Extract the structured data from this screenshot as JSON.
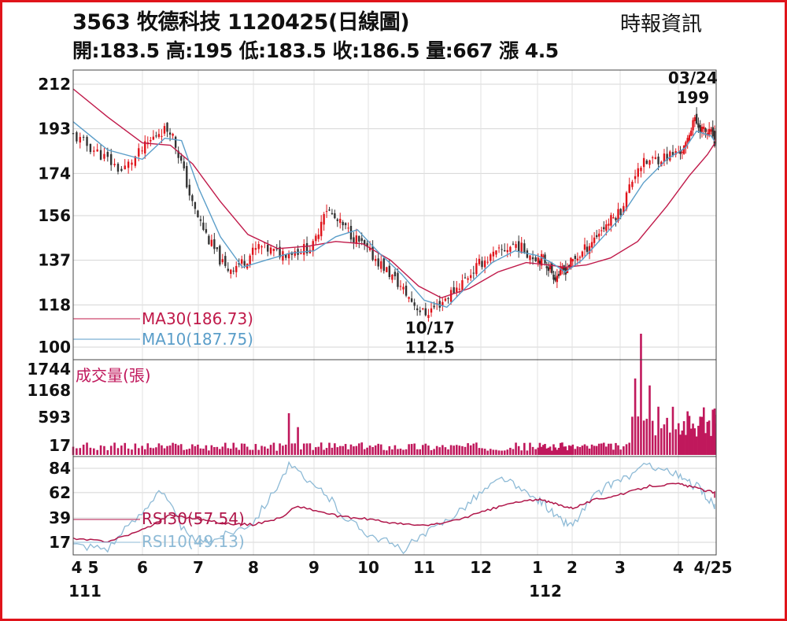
{
  "header": {
    "title": "3563  牧德科技 1120425(日線圖)",
    "source": "時報資訊",
    "ohlc": "開:183.5 高:195 低:183.5 收:186.5 量:667 漲 4.5"
  },
  "colors": {
    "up": "#e0141b",
    "down": "#333333",
    "ma30": "#c01a4a",
    "ma10": "#5b9ec9",
    "volume": "#c0185c",
    "rsi30": "#b0164a",
    "rsi10": "#8dbad6",
    "frame": "#e0141b"
  },
  "chart_data": [
    {
      "type": "candlestick",
      "ylim": [
        100,
        212
      ],
      "yticks": [
        "212",
        "193",
        "174",
        "156",
        "137",
        "118",
        "100"
      ],
      "xticks": [
        "4 5",
        "6",
        "7",
        "8",
        "9",
        "10",
        "11",
        "12",
        "1",
        "2",
        "3",
        "4",
        "4/25"
      ],
      "xticks_year": [
        {
          "label": "111",
          "at": "4 5"
        },
        {
          "label": "112",
          "at": "1"
        }
      ],
      "months": [
        "2022-04",
        "2022-05",
        "2022-06",
        "2022-07",
        "2022-08",
        "2022-09",
        "2022-10",
        "2022-11",
        "2022-12",
        "2023-01",
        "2023-02",
        "2023-03",
        "2023-04"
      ],
      "close_path": [
        [
          0,
          190
        ],
        [
          0.4,
          182
        ],
        [
          0.7,
          175
        ],
        [
          1.0,
          184
        ],
        [
          1.3,
          192
        ],
        [
          1.5,
          193
        ],
        [
          1.7,
          178
        ],
        [
          1.9,
          160
        ],
        [
          2.2,
          145
        ],
        [
          2.5,
          133
        ],
        [
          2.8,
          136
        ],
        [
          3.1,
          143
        ],
        [
          3.4,
          140
        ],
        [
          3.7,
          141
        ],
        [
          4.0,
          143
        ],
        [
          4.2,
          160
        ],
        [
          4.4,
          154
        ],
        [
          4.6,
          150
        ],
        [
          4.9,
          143
        ],
        [
          5.2,
          136
        ],
        [
          5.5,
          128
        ],
        [
          5.8,
          119
        ],
        [
          6.0,
          114
        ],
        [
          6.3,
          119
        ],
        [
          6.6,
          126
        ],
        [
          7.0,
          136
        ],
        [
          7.3,
          140
        ],
        [
          7.6,
          144
        ],
        [
          7.9,
          139
        ],
        [
          8.2,
          137
        ],
        [
          8.5,
          130
        ],
        [
          8.8,
          133
        ],
        [
          9.2,
          140
        ],
        [
          9.6,
          150
        ],
        [
          10.0,
          158
        ],
        [
          10.3,
          177
        ],
        [
          10.6,
          180
        ],
        [
          10.9,
          182
        ],
        [
          11.2,
          185
        ],
        [
          11.4,
          197
        ],
        [
          11.7,
          192
        ],
        [
          12.0,
          190
        ],
        [
          12.2,
          186.5
        ]
      ],
      "annotations": [
        {
          "label": "03/24",
          "value": "199",
          "y": 199,
          "at": 11.4
        },
        {
          "label": "10/17",
          "value": "112.5",
          "y": 112.5,
          "at": 6.1
        }
      ],
      "series": [
        {
          "name": "MA30(186.73)",
          "path": [
            [
              0,
              210
            ],
            [
              0.5,
              198
            ],
            [
              1.0,
              187
            ],
            [
              1.5,
              186
            ],
            [
              1.9,
              178
            ],
            [
              2.4,
              162
            ],
            [
              2.9,
              148
            ],
            [
              3.4,
              142
            ],
            [
              3.9,
              143
            ],
            [
              4.4,
              145
            ],
            [
              4.9,
              144
            ],
            [
              5.4,
              137
            ],
            [
              5.9,
              126
            ],
            [
              6.3,
              121
            ],
            [
              6.8,
              125
            ],
            [
              7.3,
              132
            ],
            [
              7.8,
              136
            ],
            [
              8.3,
              135
            ],
            [
              8.8,
              134
            ],
            [
              9.3,
              135
            ],
            [
              9.8,
              138
            ],
            [
              10.3,
              145
            ],
            [
              10.8,
              160
            ],
            [
              11.3,
              173
            ],
            [
              11.8,
              182
            ],
            [
              12.2,
              186.73
            ]
          ]
        },
        {
          "name": "MA10(187.75)",
          "path": [
            [
              0,
              196
            ],
            [
              0.5,
              184
            ],
            [
              1.0,
              180
            ],
            [
              1.4,
              189
            ],
            [
              1.7,
              188
            ],
            [
              2.0,
              168
            ],
            [
              2.4,
              147
            ],
            [
              2.8,
              134
            ],
            [
              3.2,
              137
            ],
            [
              3.6,
              140
            ],
            [
              4.0,
              141
            ],
            [
              4.4,
              147
            ],
            [
              4.8,
              150
            ],
            [
              5.2,
              140
            ],
            [
              5.6,
              131
            ],
            [
              6.0,
              120
            ],
            [
              6.4,
              117
            ],
            [
              6.8,
              127
            ],
            [
              7.2,
              136
            ],
            [
              7.6,
              141
            ],
            [
              8.0,
              139
            ],
            [
              8.4,
              136
            ],
            [
              8.8,
              132
            ],
            [
              9.2,
              137
            ],
            [
              9.6,
              146
            ],
            [
              10.0,
              155
            ],
            [
              10.4,
              170
            ],
            [
              10.8,
              180
            ],
            [
              11.2,
              185
            ],
            [
              11.5,
              192
            ],
            [
              11.9,
              190
            ],
            [
              12.2,
              187.75
            ]
          ]
        }
      ]
    },
    {
      "type": "bar",
      "title": "成交量(張)",
      "ylim": [
        0,
        1744
      ],
      "yticks": [
        "1744",
        "1168",
        "593",
        "17"
      ],
      "spikes": [
        [
          3.6,
          600
        ],
        [
          3.75,
          400
        ],
        [
          10.35,
          1744
        ],
        [
          10.25,
          1100
        ],
        [
          10.5,
          1000
        ],
        [
          12.2,
          667
        ]
      ],
      "baseline_range": [
        60,
        180
      ]
    },
    {
      "type": "line",
      "ylim": [
        5,
        90
      ],
      "yticks": [
        "84",
        "62",
        "39",
        "17"
      ],
      "series": [
        {
          "name": "RSI30(57.54)",
          "path": [
            [
              0,
              20
            ],
            [
              0.5,
              18
            ],
            [
              1.0,
              28
            ],
            [
              1.5,
              42
            ],
            [
              2.0,
              38
            ],
            [
              2.5,
              34
            ],
            [
              3.0,
              33
            ],
            [
              3.5,
              40
            ],
            [
              3.7,
              50
            ],
            [
              4.0,
              46
            ],
            [
              4.5,
              40
            ],
            [
              5.0,
              38
            ],
            [
              5.5,
              34
            ],
            [
              6.0,
              32
            ],
            [
              6.5,
              36
            ],
            [
              7.0,
              44
            ],
            [
              7.5,
              52
            ],
            [
              8.0,
              56
            ],
            [
              8.5,
              52
            ],
            [
              9.0,
              48
            ],
            [
              9.5,
              56
            ],
            [
              10.0,
              60
            ],
            [
              10.5,
              68
            ],
            [
              11.0,
              70
            ],
            [
              11.5,
              66
            ],
            [
              12.0,
              62
            ],
            [
              12.2,
              57.54
            ]
          ]
        },
        {
          "name": "RSI10(49.13)",
          "path": [
            [
              0,
              15
            ],
            [
              0.5,
              12
            ],
            [
              1.0,
              44
            ],
            [
              1.3,
              66
            ],
            [
              1.5,
              50
            ],
            [
              1.8,
              22
            ],
            [
              2.1,
              16
            ],
            [
              2.5,
              24
            ],
            [
              3.0,
              36
            ],
            [
              3.3,
              60
            ],
            [
              3.6,
              88
            ],
            [
              3.9,
              70
            ],
            [
              4.2,
              62
            ],
            [
              4.6,
              38
            ],
            [
              5.0,
              25
            ],
            [
              5.3,
              18
            ],
            [
              5.6,
              10
            ],
            [
              5.9,
              20
            ],
            [
              6.2,
              30
            ],
            [
              6.6,
              45
            ],
            [
              7.0,
              62
            ],
            [
              7.4,
              76
            ],
            [
              7.8,
              60
            ],
            [
              8.2,
              52
            ],
            [
              8.6,
              38
            ],
            [
              9.0,
              32
            ],
            [
              9.4,
              56
            ],
            [
              9.8,
              70
            ],
            [
              10.2,
              78
            ],
            [
              10.5,
              88
            ],
            [
              10.8,
              82
            ],
            [
              11.2,
              72
            ],
            [
              11.6,
              66
            ],
            [
              12.0,
              50
            ],
            [
              12.2,
              49.13
            ]
          ]
        }
      ]
    }
  ]
}
